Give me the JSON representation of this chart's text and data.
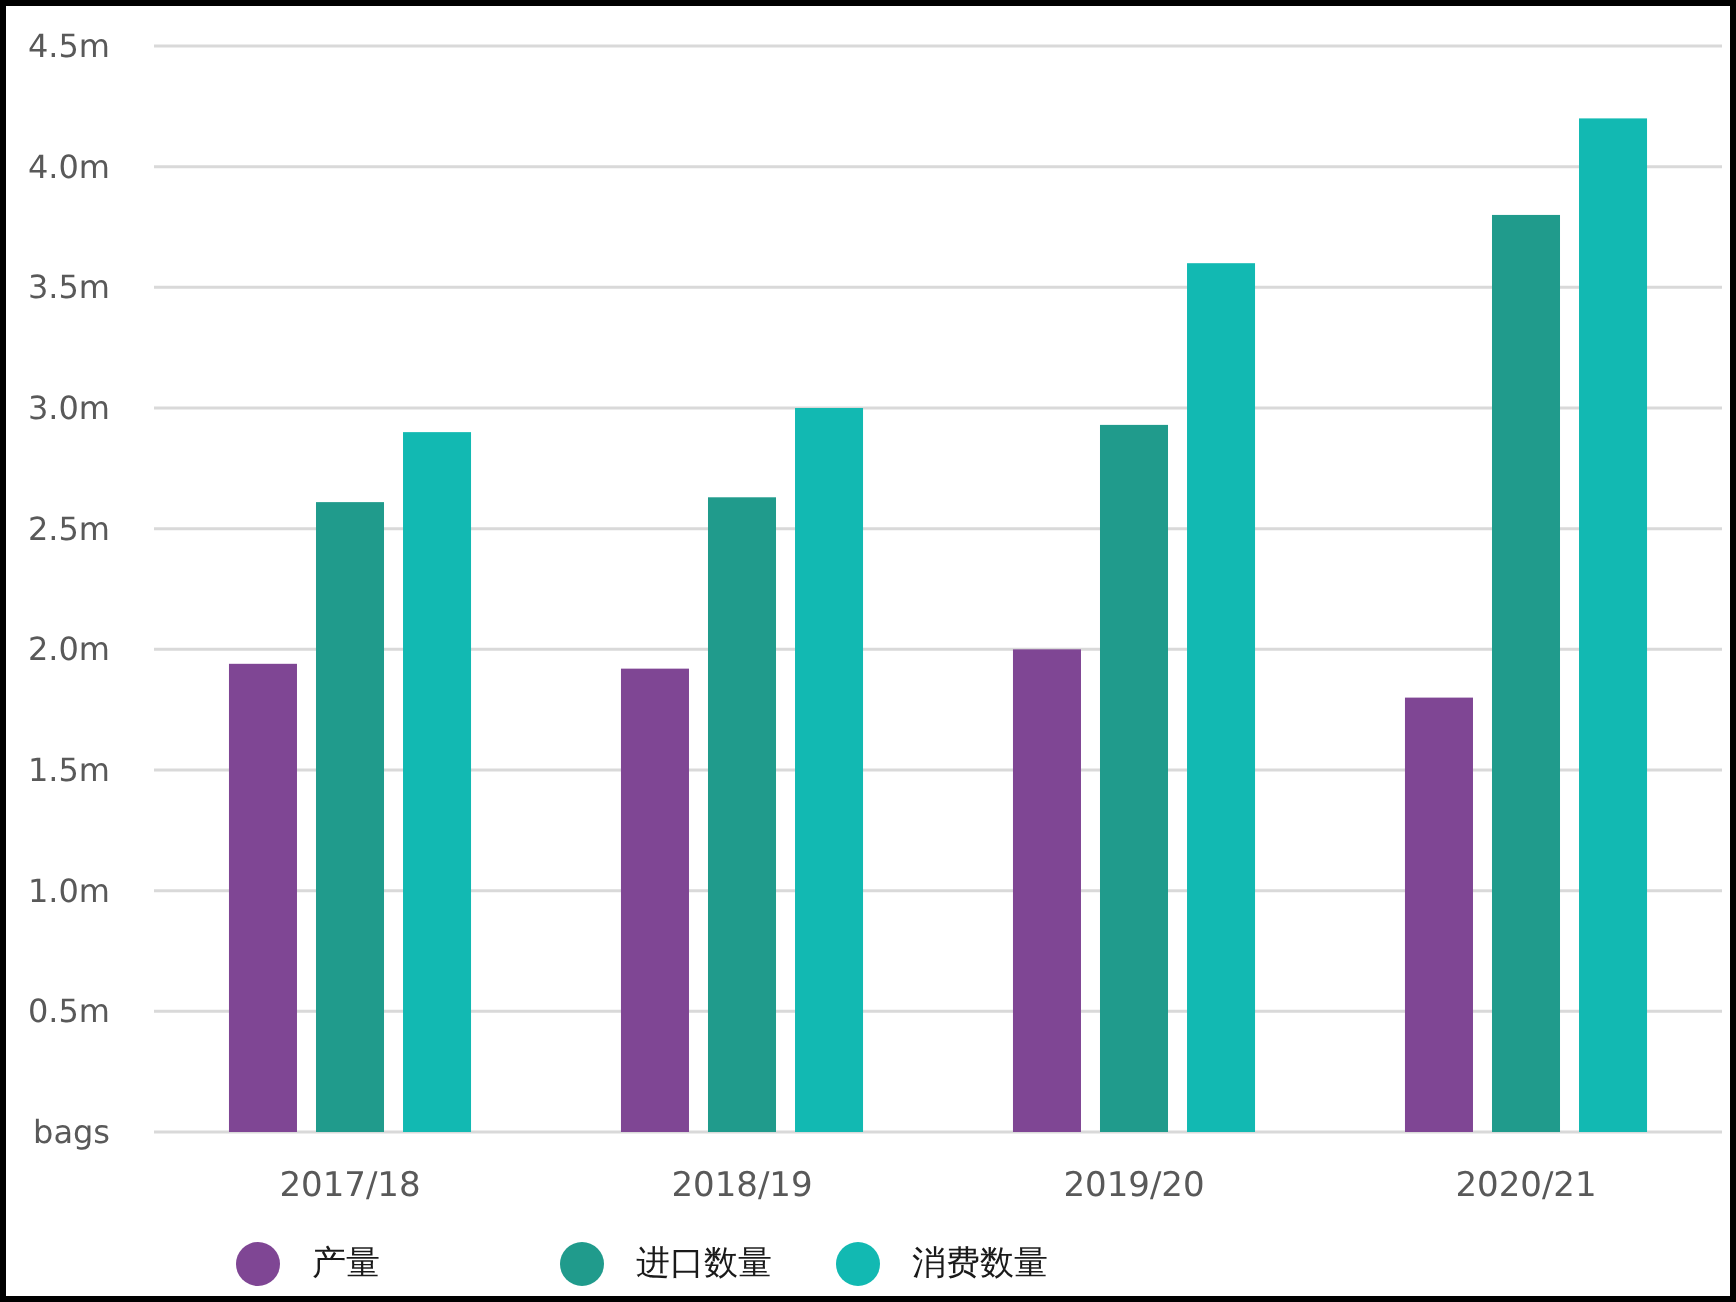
{
  "chart_data": {
    "type": "bar",
    "categories": [
      "2017/18",
      "2018/19",
      "2019/20",
      "2020/21"
    ],
    "series": [
      {
        "name": "产量",
        "color": "#7f4694",
        "values": [
          1.94,
          1.92,
          2.0,
          1.8
        ]
      },
      {
        "name": "进口数量",
        "color": "#209b8c",
        "values": [
          2.61,
          2.63,
          2.93,
          3.8
        ]
      },
      {
        "name": "消费数量",
        "color": "#12b9b2",
        "values": [
          2.9,
          3.0,
          3.6,
          4.2
        ]
      }
    ],
    "ylim": [
      0,
      4.5
    ],
    "yticks": [
      {
        "value": 0,
        "label": "bags"
      },
      {
        "value": 0.5,
        "label": "0.5m"
      },
      {
        "value": 1,
        "label": "1.0m"
      },
      {
        "value": 1.5,
        "label": "1.5m"
      },
      {
        "value": 2,
        "label": "2.0m"
      },
      {
        "value": 2.5,
        "label": "2.5m"
      },
      {
        "value": 3,
        "label": "3.0m"
      },
      {
        "value": 3.5,
        "label": "3.5m"
      },
      {
        "value": 4,
        "label": "4.0m"
      },
      {
        "value": 4.5,
        "label": "4.5m"
      }
    ],
    "grid": "y",
    "legend": "bottom"
  }
}
